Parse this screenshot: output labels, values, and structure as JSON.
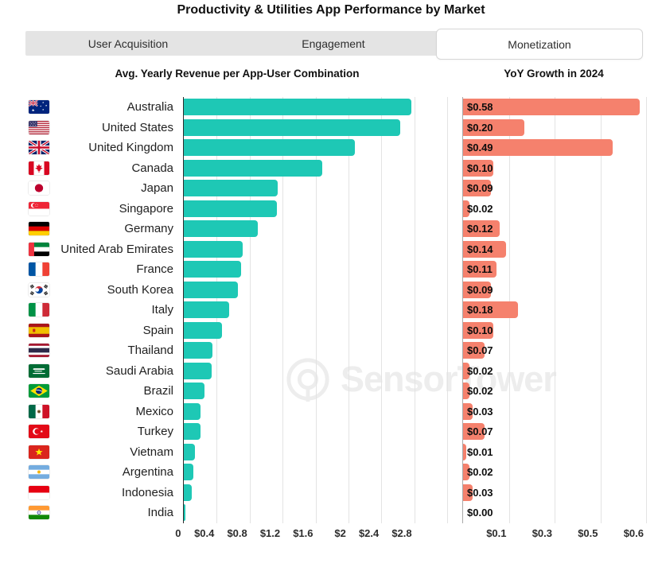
{
  "title": "Productivity & Utilities App Performance by Market",
  "tabs": [
    {
      "label": "User Acquisition",
      "active": false
    },
    {
      "label": "Engagement",
      "active": false
    },
    {
      "label": "Monetization",
      "active": true
    }
  ],
  "watermark": {
    "text": "SensorTower"
  },
  "colors": {
    "revenue_bar": "#1EC8B5",
    "growth_bar": "#F5816D",
    "tab_bar_bg": "#E4E4E4",
    "axis_line": "#2B2B2B",
    "gridline": "#E3E3E3"
  },
  "flags": [
    "au",
    "us",
    "gb",
    "ca",
    "jp",
    "sg",
    "de",
    "ae",
    "fr",
    "kr",
    "it",
    "es",
    "th",
    "sa",
    "br",
    "mx",
    "tr",
    "vn",
    "ar",
    "id",
    "in"
  ],
  "chart_data": [
    {
      "type": "bar",
      "orientation": "horizontal",
      "title": "Avg. Yearly Revenue per App-User Combination",
      "categories": [
        "Australia",
        "United States",
        "United Kingdom",
        "Canada",
        "Japan",
        "Singapore",
        "Germany",
        "United Arab Emirates",
        "France",
        "South Korea",
        "Italy",
        "Spain",
        "Thailand",
        "Saudi Arabia",
        "Brazil",
        "Mexico",
        "Turkey",
        "Vietnam",
        "Argentina",
        "Indonesia",
        "India"
      ],
      "values": [
        2.76,
        2.63,
        2.08,
        1.68,
        1.14,
        1.13,
        0.9,
        0.72,
        0.7,
        0.66,
        0.55,
        0.46,
        0.35,
        0.34,
        0.25,
        0.2,
        0.2,
        0.14,
        0.12,
        0.1,
        0.02
      ],
      "value_unit": "USD",
      "xlim": [
        0,
        3.19
      ],
      "xticks": [
        {
          "label": "0",
          "value": 0
        },
        {
          "label": "$0.4",
          "value": 0.4
        },
        {
          "label": "$0.8",
          "value": 0.8
        },
        {
          "label": "$1.2",
          "value": 1.2
        },
        {
          "label": "$1.6",
          "value": 1.6
        },
        {
          "label": "$2",
          "value": 2.0
        },
        {
          "label": "$2.4",
          "value": 2.4
        },
        {
          "label": "$2.8",
          "value": 2.8
        }
      ],
      "grid_values": [
        0.4,
        0.8,
        1.2,
        1.6,
        2.0,
        2.4,
        2.8,
        3.2
      ],
      "bar_color": "#1EC8B5",
      "legend": false
    },
    {
      "type": "bar",
      "orientation": "horizontal",
      "title": "YoY Growth in 2024",
      "categories": [
        "Australia",
        "United States",
        "United Kingdom",
        "Canada",
        "Japan",
        "Singapore",
        "Germany",
        "United Arab Emirates",
        "France",
        "South Korea",
        "Italy",
        "Spain",
        "Thailand",
        "Saudi Arabia",
        "Brazil",
        "Mexico",
        "Turkey",
        "Vietnam",
        "Argentina",
        "Indonesia",
        "India"
      ],
      "values": [
        0.58,
        0.2,
        0.49,
        0.1,
        0.09,
        0.02,
        0.12,
        0.14,
        0.11,
        0.09,
        0.18,
        0.1,
        0.07,
        0.02,
        0.02,
        0.03,
        0.07,
        0.01,
        0.02,
        0.03,
        0.0
      ],
      "data_labels": [
        "$0.58",
        "$0.20",
        "$0.49",
        "$0.10",
        "$0.09",
        "$0.02",
        "$0.12",
        "$0.14",
        "$0.11",
        "$0.09",
        "$0.18",
        "$0.10",
        "$0.07",
        "$0.02",
        "$0.02",
        "$0.03",
        "$0.07",
        "$0.01",
        "$0.02",
        "$0.03",
        "$0.00"
      ],
      "value_unit": "USD",
      "xlim": [
        0,
        0.6
      ],
      "xticks": [
        {
          "label": "$0.1",
          "value": 0.15
        },
        {
          "label": "$0.3",
          "value": 0.3
        },
        {
          "label": "$0.5",
          "value": 0.45
        },
        {
          "label": "$0.6",
          "value": 0.6
        }
      ],
      "grid_values": [
        0.15,
        0.3,
        0.45,
        0.6
      ],
      "bar_color": "#F5816D",
      "legend": false
    }
  ]
}
